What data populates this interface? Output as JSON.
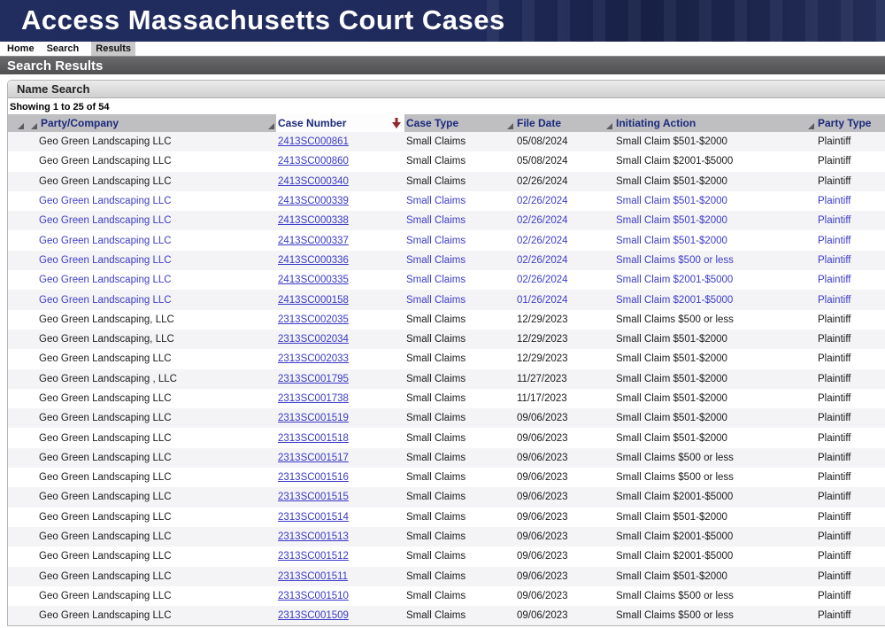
{
  "app": {
    "title": "Access Massachusetts Court Cases"
  },
  "nav": {
    "items": [
      "Home",
      "Search",
      "Results"
    ],
    "active": "Results"
  },
  "page": {
    "section_title": "Search Results",
    "panel_title": "Name Search",
    "showing_text": "Showing 1 to 25 of 54"
  },
  "colors": {
    "banner_navy": "#202b5c",
    "section_bar_gray": "#545456",
    "table_header_bg": "#bfbfc2",
    "header_text_navy": "#1b2a7b",
    "link_blue": "#3a3ac8",
    "row_alt_bg": "#f4f4f6",
    "sort_arrow_red": "#8e2a2c"
  },
  "table": {
    "columns": [
      "Party/Company",
      "Case Number",
      "Case Type",
      "File Date",
      "Initiating Action",
      "Party Type"
    ],
    "sorted_column": "Case Number",
    "sort_direction": "descending",
    "rows": [
      {
        "party": "Geo Green Landscaping LLC",
        "case_number": "2413SC000861",
        "case_type": "Small Claims",
        "file_date": "05/08/2024",
        "initiating_action": "Small Claim $501-$2000",
        "party_type": "Plaintiff",
        "highlighted": false
      },
      {
        "party": "Geo Green Landscaping LLC",
        "case_number": "2413SC000860",
        "case_type": "Small Claims",
        "file_date": "05/08/2024",
        "initiating_action": "Small Claim $2001-$5000",
        "party_type": "Plaintiff",
        "highlighted": false
      },
      {
        "party": "Geo Green Landscaping LLC",
        "case_number": "2413SC000340",
        "case_type": "Small Claims",
        "file_date": "02/26/2024",
        "initiating_action": "Small Claim $501-$2000",
        "party_type": "Plaintiff",
        "highlighted": false
      },
      {
        "party": "Geo Green Landscaping LLC",
        "case_number": "2413SC000339",
        "case_type": "Small Claims",
        "file_date": "02/26/2024",
        "initiating_action": "Small Claim $501-$2000",
        "party_type": "Plaintiff",
        "highlighted": true
      },
      {
        "party": "Geo Green Landscaping LLC",
        "case_number": "2413SC000338",
        "case_type": "Small Claims",
        "file_date": "02/26/2024",
        "initiating_action": "Small Claim $501-$2000",
        "party_type": "Plaintiff",
        "highlighted": true
      },
      {
        "party": "Geo Green Landscaping LLC",
        "case_number": "2413SC000337",
        "case_type": "Small Claims",
        "file_date": "02/26/2024",
        "initiating_action": "Small Claim $501-$2000",
        "party_type": "Plaintiff",
        "highlighted": true
      },
      {
        "party": "Geo Green Landscaping LLC",
        "case_number": "2413SC000336",
        "case_type": "Small Claims",
        "file_date": "02/26/2024",
        "initiating_action": "Small Claims $500 or less",
        "party_type": "Plaintiff",
        "highlighted": true
      },
      {
        "party": "Geo Green Landscaping LLC",
        "case_number": "2413SC000335",
        "case_type": "Small Claims",
        "file_date": "02/26/2024",
        "initiating_action": "Small Claim $2001-$5000",
        "party_type": "Plaintiff",
        "highlighted": true
      },
      {
        "party": "Geo Green Landscaping LLC",
        "case_number": "2413SC000158",
        "case_type": "Small Claims",
        "file_date": "01/26/2024",
        "initiating_action": "Small Claim $2001-$5000",
        "party_type": "Plaintiff",
        "highlighted": true
      },
      {
        "party": "Geo Green Landscaping, LLC",
        "case_number": "2313SC002035",
        "case_type": "Small Claims",
        "file_date": "12/29/2023",
        "initiating_action": "Small Claims $500 or less",
        "party_type": "Plaintiff",
        "highlighted": false
      },
      {
        "party": "Geo Green Landscaping, LLC",
        "case_number": "2313SC002034",
        "case_type": "Small Claims",
        "file_date": "12/29/2023",
        "initiating_action": "Small Claim $501-$2000",
        "party_type": "Plaintiff",
        "highlighted": false
      },
      {
        "party": "Geo Green Landscaping LLC",
        "case_number": "2313SC002033",
        "case_type": "Small Claims",
        "file_date": "12/29/2023",
        "initiating_action": "Small Claim $501-$2000",
        "party_type": "Plaintiff",
        "highlighted": false
      },
      {
        "party": "Geo Green Landscaping , LLC",
        "case_number": "2313SC001795",
        "case_type": "Small Claims",
        "file_date": "11/27/2023",
        "initiating_action": "Small Claim $501-$2000",
        "party_type": "Plaintiff",
        "highlighted": false
      },
      {
        "party": "Geo Green Landscaping LLC",
        "case_number": "2313SC001738",
        "case_type": "Small Claims",
        "file_date": "11/17/2023",
        "initiating_action": "Small Claim $501-$2000",
        "party_type": "Plaintiff",
        "highlighted": false
      },
      {
        "party": "Geo Green Landscaping LLC",
        "case_number": "2313SC001519",
        "case_type": "Small Claims",
        "file_date": "09/06/2023",
        "initiating_action": "Small Claim $501-$2000",
        "party_type": "Plaintiff",
        "highlighted": false
      },
      {
        "party": "Geo Green Landscaping LLC",
        "case_number": "2313SC001518",
        "case_type": "Small Claims",
        "file_date": "09/06/2023",
        "initiating_action": "Small Claim $501-$2000",
        "party_type": "Plaintiff",
        "highlighted": false
      },
      {
        "party": "Geo Green Landscaping LLC",
        "case_number": "2313SC001517",
        "case_type": "Small Claims",
        "file_date": "09/06/2023",
        "initiating_action": "Small Claims $500 or less",
        "party_type": "Plaintiff",
        "highlighted": false
      },
      {
        "party": "Geo Green Landscaping LLC",
        "case_number": "2313SC001516",
        "case_type": "Small Claims",
        "file_date": "09/06/2023",
        "initiating_action": "Small Claims $500 or less",
        "party_type": "Plaintiff",
        "highlighted": false
      },
      {
        "party": "Geo Green Landscaping LLC",
        "case_number": "2313SC001515",
        "case_type": "Small Claims",
        "file_date": "09/06/2023",
        "initiating_action": "Small Claim $2001-$5000",
        "party_type": "Plaintiff",
        "highlighted": false
      },
      {
        "party": "Geo Green Landscaping LLC",
        "case_number": "2313SC001514",
        "case_type": "Small Claims",
        "file_date": "09/06/2023",
        "initiating_action": "Small Claim $501-$2000",
        "party_type": "Plaintiff",
        "highlighted": false
      },
      {
        "party": "Geo Green Landscaping LLC",
        "case_number": "2313SC001513",
        "case_type": "Small Claims",
        "file_date": "09/06/2023",
        "initiating_action": "Small Claim $2001-$5000",
        "party_type": "Plaintiff",
        "highlighted": false
      },
      {
        "party": "Geo Green Landscaping LLC",
        "case_number": "2313SC001512",
        "case_type": "Small Claims",
        "file_date": "09/06/2023",
        "initiating_action": "Small Claim $2001-$5000",
        "party_type": "Plaintiff",
        "highlighted": false
      },
      {
        "party": "Geo Green Landscaping LLC",
        "case_number": "2313SC001511",
        "case_type": "Small Claims",
        "file_date": "09/06/2023",
        "initiating_action": "Small Claim $501-$2000",
        "party_type": "Plaintiff",
        "highlighted": false
      },
      {
        "party": "Geo Green Landscaping LLC",
        "case_number": "2313SC001510",
        "case_type": "Small Claims",
        "file_date": "09/06/2023",
        "initiating_action": "Small Claims $500 or less",
        "party_type": "Plaintiff",
        "highlighted": false
      },
      {
        "party": "Geo Green Landscaping LLC",
        "case_number": "2313SC001509",
        "case_type": "Small Claims",
        "file_date": "09/06/2023",
        "initiating_action": "Small Claims $500 or less",
        "party_type": "Plaintiff",
        "highlighted": false
      }
    ]
  }
}
